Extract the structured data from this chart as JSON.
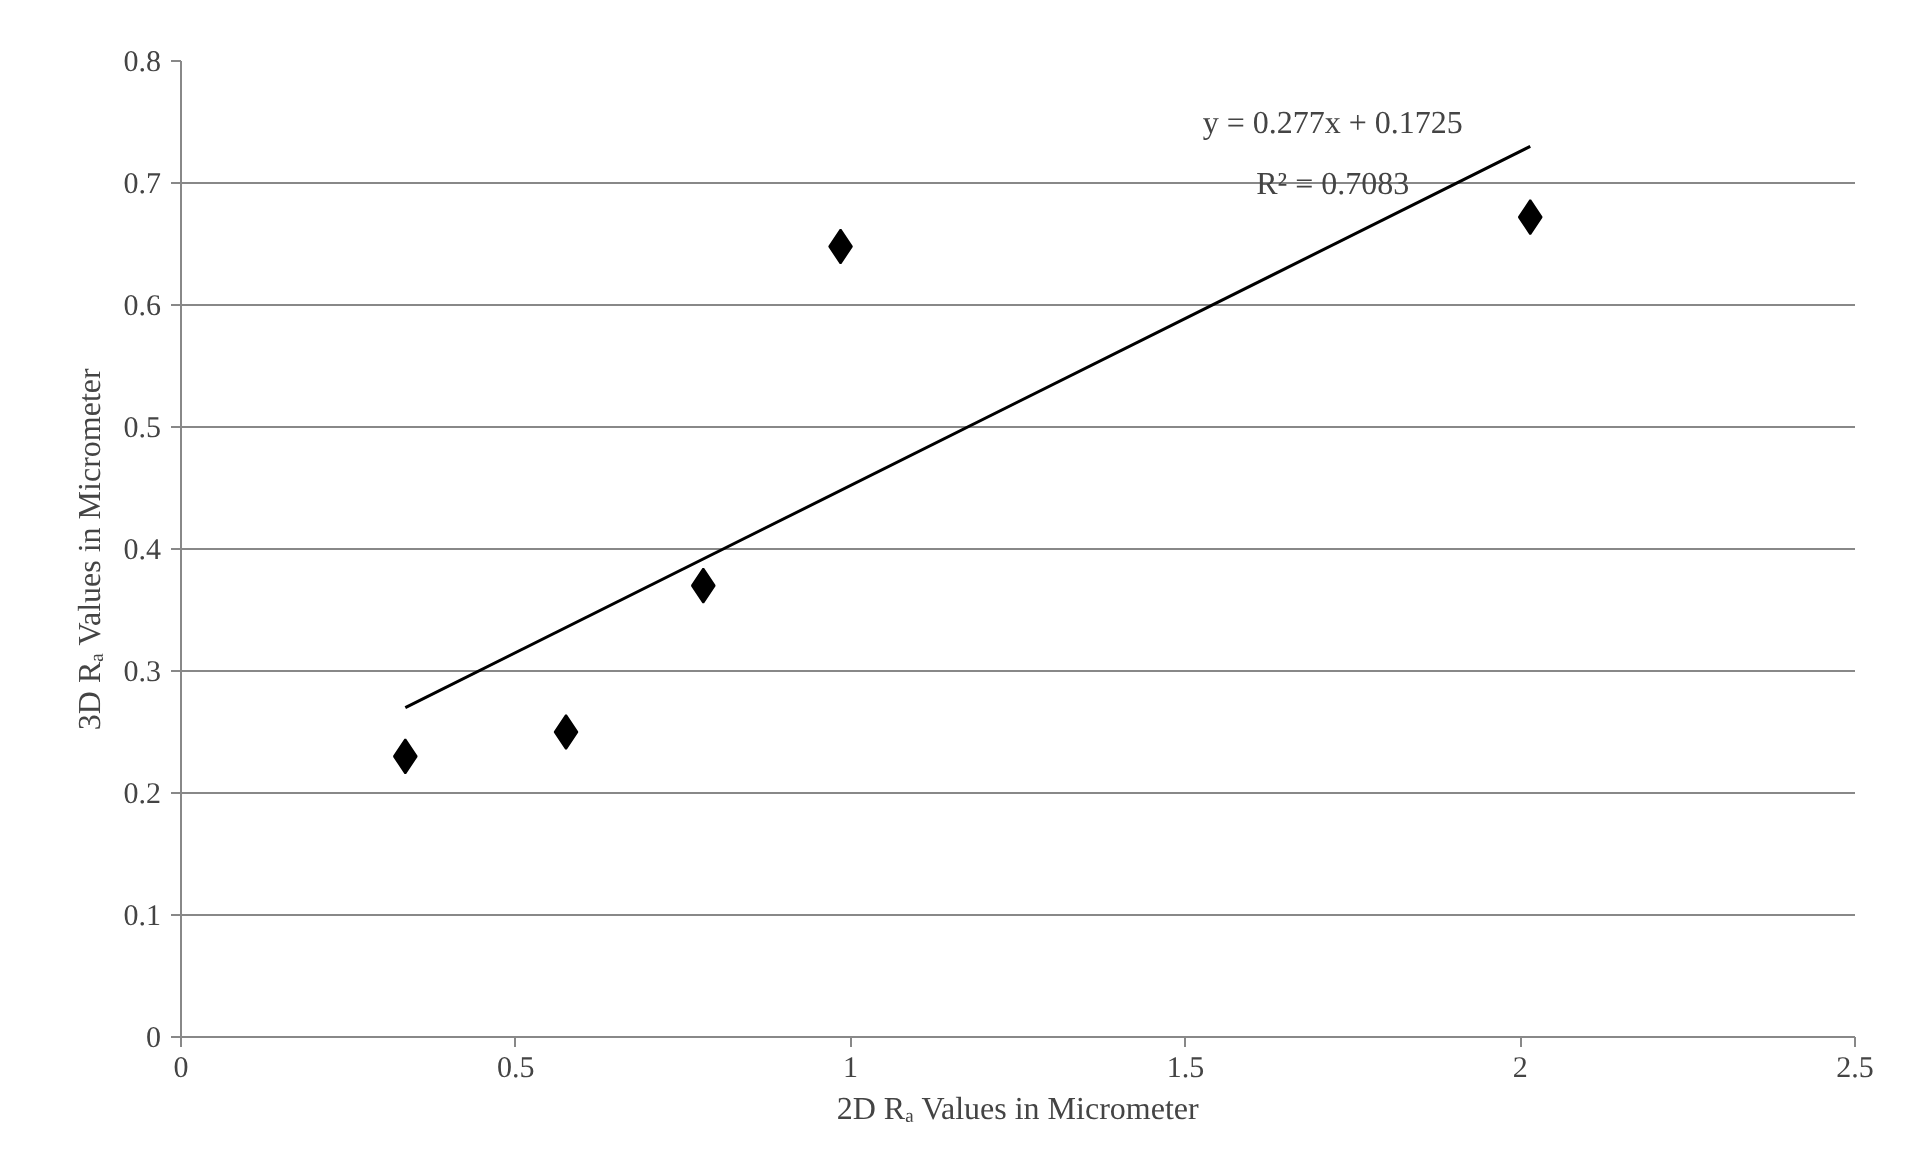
{
  "chart_data": {
    "type": "scatter",
    "xlabel": "2D Rₐ Values in Micrometer",
    "ylabel": "3D Rₐ Values in Micrometer",
    "xlim": [
      0,
      2.5
    ],
    "xticks": [
      0,
      0.5,
      1,
      1.5,
      2,
      2.5
    ],
    "ylim": [
      0,
      0.8
    ],
    "yticks": [
      0,
      0.1,
      0.2,
      0.3,
      0.4,
      0.5,
      0.6,
      0.7,
      0.8
    ],
    "grid": "y",
    "series": [
      {
        "color": "#000000",
        "marker": "diamond",
        "x": [
          0.335,
          0.575,
          0.78,
          0.985,
          2.015
        ],
        "values": [
          0.23,
          0.25,
          0.37,
          0.648,
          0.672
        ]
      },
      {
        "type": "line",
        "marker": "none",
        "color": "#000000",
        "x": [
          0.335,
          2.015
        ],
        "values": [
          0.27,
          0.73
        ]
      }
    ],
    "annotations": [
      "y = 0.277x + 0.1725",
      "R² = 0.7083"
    ]
  }
}
